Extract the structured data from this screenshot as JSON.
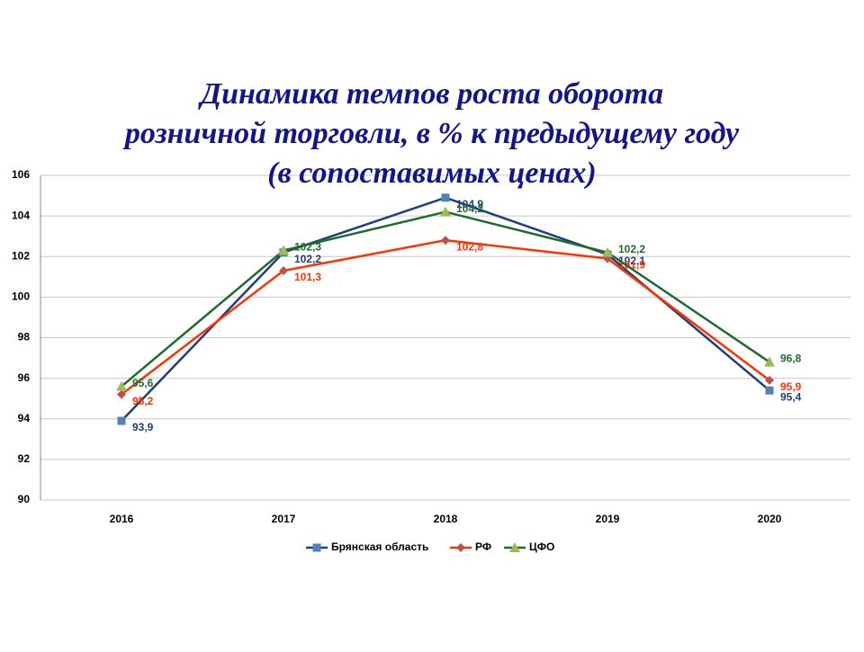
{
  "chart_data": {
    "type": "line",
    "title": [
      "Динамика темпов роста оборота",
      "розничной торговли, в % к предыдущему году",
      "(в сопоставимых ценах)"
    ],
    "categories": [
      "2016",
      "2017",
      "2018",
      "2019",
      "2020"
    ],
    "series": [
      {
        "name": "Брянская область",
        "color": "#1f3f7a",
        "marker_color": "#4f81bd",
        "marker": "square",
        "values": [
          93.9,
          102.2,
          104.9,
          102.1,
          95.4
        ],
        "value_labels": [
          "93,9",
          "102,2",
          "104,9",
          "102,1",
          "95,4"
        ]
      },
      {
        "name": "РФ",
        "color": "#ff3300",
        "marker_color": "#c0504d",
        "marker": "diamond",
        "values": [
          95.2,
          101.3,
          102.8,
          101.9,
          95.9
        ],
        "value_labels": [
          "95,2",
          "101,3",
          "102,8",
          "101,9",
          "95,9"
        ]
      },
      {
        "name": "ЦФО",
        "color": "#1e6b2e",
        "marker_color": "#9bbb59",
        "marker": "triangle",
        "values": [
          95.6,
          102.3,
          104.2,
          102.2,
          96.8
        ],
        "value_labels": [
          "95,6",
          "102,3",
          "104,2",
          "102,2",
          "96,8"
        ]
      }
    ],
    "ylim": [
      90,
      106
    ],
    "yticks": [
      90,
      92,
      94,
      96,
      98,
      100,
      102,
      104,
      106
    ],
    "grid": true,
    "legend": "bottom"
  }
}
